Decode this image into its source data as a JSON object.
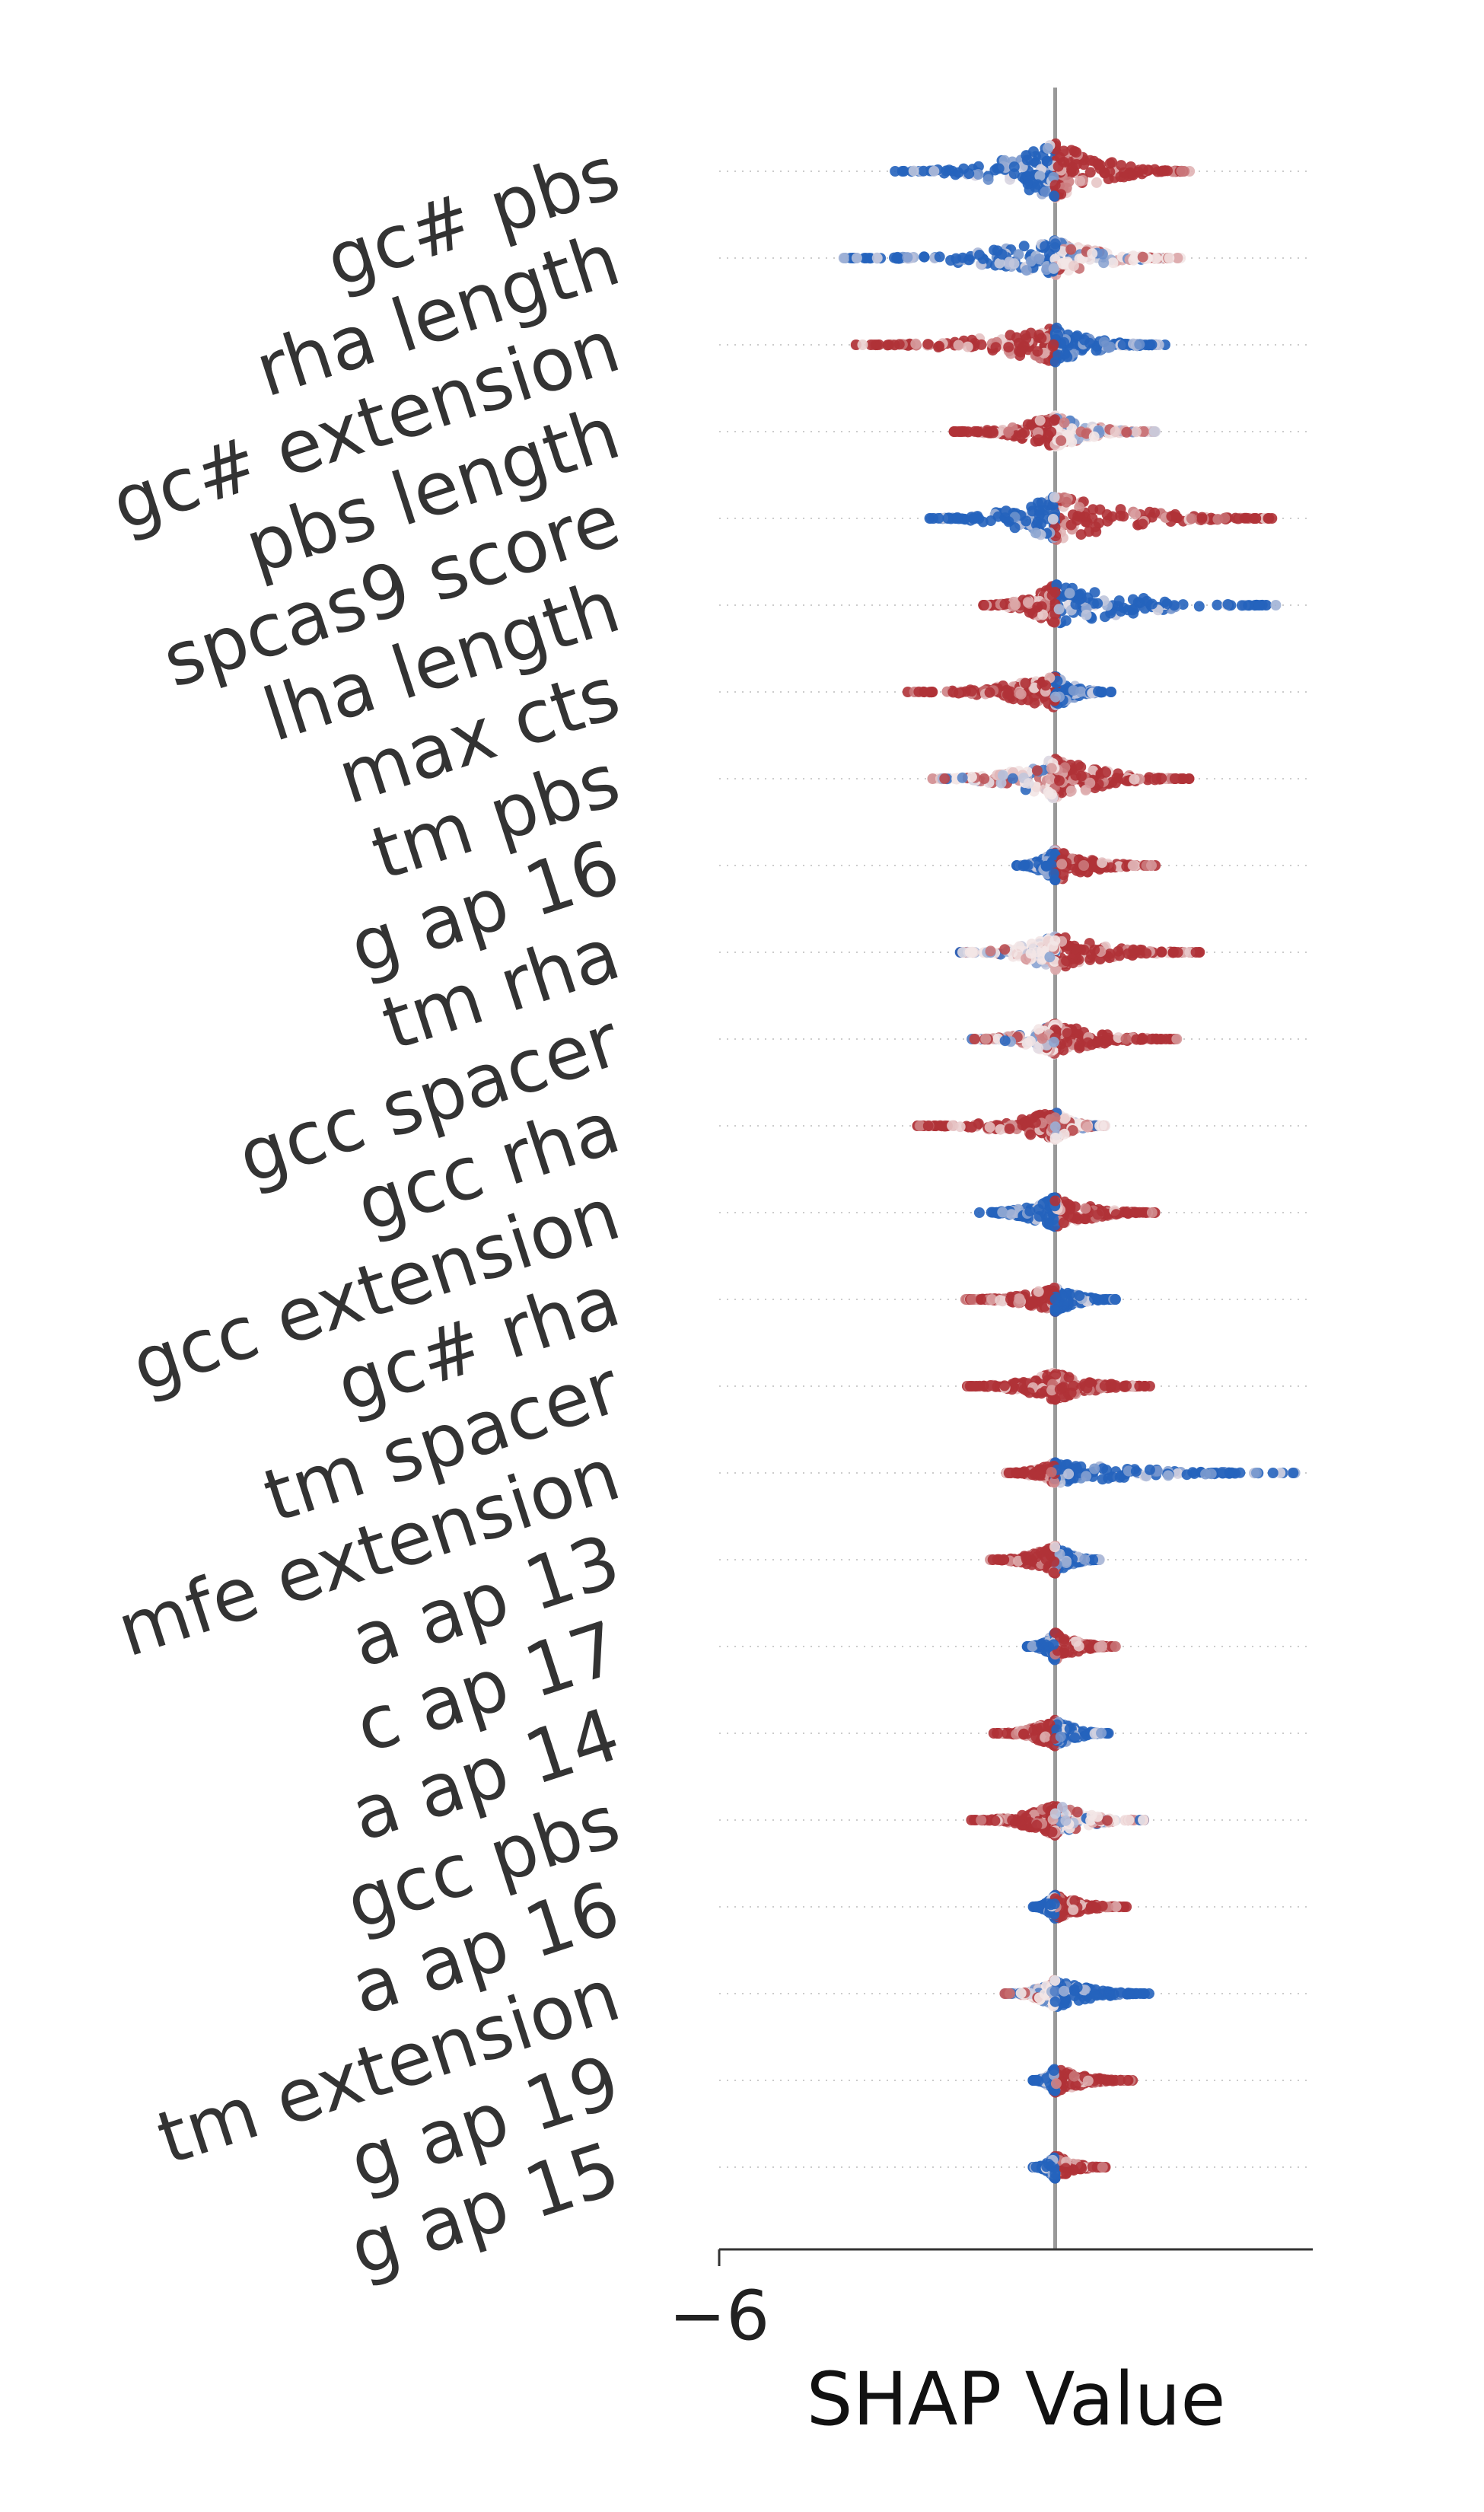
{
  "chart_data": {
    "type": "beeswarm",
    "xlabel": "SHAP Value",
    "xlim": [
      -6,
      4.6
    ],
    "x_ticks": [
      {
        "value": -6,
        "label": "−6"
      }
    ],
    "zero_line": true,
    "grid": "dotted horizontal row guides",
    "colors": {
      "low": "#2563bd",
      "mid": "#f3e6e6",
      "high": "#b03237",
      "axis": "#333333",
      "zero": "#999999"
    },
    "features": [
      {
        "name": "gc# pbs",
        "min": -2.9,
        "max": 2.5,
        "left": "blue",
        "right": "red",
        "width": 0.8
      },
      {
        "name": "rha length",
        "min": -3.8,
        "max": 2.3,
        "left": "blue",
        "right": "mixed",
        "width": 0.5
      },
      {
        "name": "gc# extension",
        "min": -3.6,
        "max": 2.0,
        "left": "red",
        "right": "blue",
        "width": 0.5
      },
      {
        "name": "pbs length",
        "min": -1.9,
        "max": 1.8,
        "left": "red",
        "right": "mixed",
        "width": 0.45
      },
      {
        "name": "spcas9 score",
        "min": -2.3,
        "max": 3.9,
        "left": "blue",
        "right": "red",
        "width": 0.65
      },
      {
        "name": "lha length",
        "min": -1.3,
        "max": 4.0,
        "left": "red",
        "right": "blue",
        "width": 0.6
      },
      {
        "name": "max cts",
        "min": -2.7,
        "max": 1.0,
        "left": "red",
        "right": "blue",
        "width": 0.45
      },
      {
        "name": "tm pbs",
        "min": -2.2,
        "max": 2.4,
        "left": "mixed",
        "right": "red",
        "width": 0.6
      },
      {
        "name": "g ap 16",
        "min": -0.7,
        "max": 1.8,
        "left": "blue",
        "right": "red",
        "width": 0.45
      },
      {
        "name": "tm rha",
        "min": -1.7,
        "max": 2.6,
        "left": "mixed",
        "right": "red",
        "width": 0.5
      },
      {
        "name": "gcc spacer",
        "min": -1.5,
        "max": 2.2,
        "left": "mixed",
        "right": "red",
        "width": 0.45
      },
      {
        "name": "gcc rha",
        "min": -2.5,
        "max": 0.9,
        "left": "red",
        "right": "mixed",
        "width": 0.4
      },
      {
        "name": "gcc extension",
        "min": -1.4,
        "max": 1.8,
        "left": "blue",
        "right": "red",
        "width": 0.45
      },
      {
        "name": "gc# rha",
        "min": -1.6,
        "max": 1.1,
        "left": "red",
        "right": "blue",
        "width": 0.35
      },
      {
        "name": "tm spacer",
        "min": -1.6,
        "max": 1.7,
        "left": "red",
        "right": "red",
        "width": 0.4
      },
      {
        "name": "mfe extension",
        "min": -0.9,
        "max": 4.3,
        "left": "red",
        "right": "blue",
        "width": 0.3
      },
      {
        "name": "a ap 13",
        "min": -1.2,
        "max": 0.8,
        "left": "red",
        "right": "blue",
        "width": 0.4
      },
      {
        "name": "c ap 17",
        "min": -0.5,
        "max": 1.1,
        "left": "blue",
        "right": "red",
        "width": 0.4
      },
      {
        "name": "a ap 14",
        "min": -1.1,
        "max": 1.0,
        "left": "red",
        "right": "blue",
        "width": 0.4
      },
      {
        "name": "gcc pbs",
        "min": -1.5,
        "max": 1.6,
        "left": "red",
        "right": "mixed",
        "width": 0.45
      },
      {
        "name": "a ap 16",
        "min": -0.4,
        "max": 1.3,
        "left": "blue",
        "right": "red",
        "width": 0.35
      },
      {
        "name": "tm extension",
        "min": -0.9,
        "max": 1.7,
        "left": "mixed",
        "right": "blue",
        "width": 0.4
      },
      {
        "name": "g ap 19",
        "min": -0.4,
        "max": 1.4,
        "left": "blue",
        "right": "red",
        "width": 0.35
      },
      {
        "name": "g ap 15",
        "min": -0.4,
        "max": 0.9,
        "left": "blue",
        "right": "red",
        "width": 0.35
      }
    ]
  }
}
